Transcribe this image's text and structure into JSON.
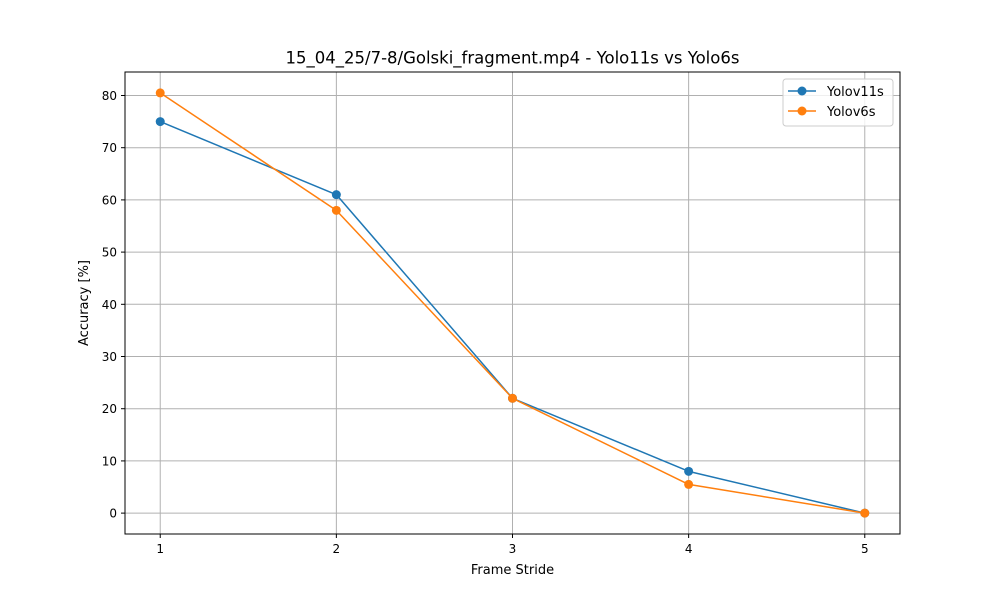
{
  "chart_data": {
    "type": "line",
    "title": "15_04_25/7-8/Golski_fragment.mp4 - Yolo11s vs Yolo6s",
    "xlabel": "Frame Stride",
    "ylabel": "Accuracy [%]",
    "x": [
      1,
      2,
      3,
      4,
      5
    ],
    "x_ticks": [
      "1",
      "2",
      "3",
      "4",
      "5"
    ],
    "y_ticks": [
      "0",
      "10",
      "20",
      "30",
      "40",
      "50",
      "60",
      "70",
      "80"
    ],
    "xlim": [
      0.8,
      5.2
    ],
    "ylim": [
      -4,
      84.5
    ],
    "grid": true,
    "legend_position": "top-right",
    "series": [
      {
        "name": "Yolov11s",
        "color": "#1f77b4",
        "values": [
          75.0,
          61.0,
          22.0,
          8.0,
          0.0
        ]
      },
      {
        "name": "Yolov6s",
        "color": "#ff7f0e",
        "values": [
          80.5,
          58.0,
          22.0,
          5.5,
          0.0
        ]
      }
    ]
  }
}
